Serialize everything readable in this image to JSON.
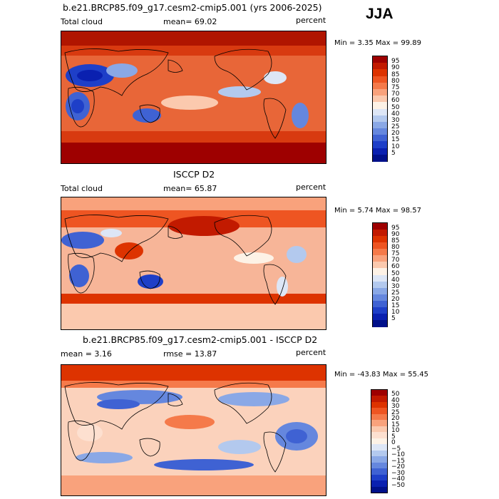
{
  "season": "JJA",
  "panels": [
    {
      "id": "model",
      "title": "b.e21.BRCP85.f09_g17.cesm2-cmip5.001 (yrs 2006-2025)",
      "left_label": "Total cloud",
      "center_label": "mean=  69.02",
      "right_label": "percent",
      "minmax": "Min =    3.35 Max =   99.89",
      "map_icon": "world-map",
      "colorbar": {
        "labels": [
          "95",
          "90",
          "85",
          "80",
          "75",
          "70",
          "60",
          "50",
          "40",
          "30",
          "25",
          "20",
          "15",
          "10",
          "5"
        ],
        "colors": [
          "#9e0000",
          "#c21a00",
          "#dd3300",
          "#ee5522",
          "#f57a4a",
          "#f9a27c",
          "#fbc9ae",
          "#fdf2e6",
          "#dde6f6",
          "#b3c9ee",
          "#8aa8e6",
          "#6587de",
          "#3f62d3",
          "#1e3fc8",
          "#0a20b0",
          "#00108a"
        ]
      }
    },
    {
      "id": "obs",
      "title": "ISCCP D2",
      "left_label": "Total cloud",
      "center_label": "mean=  65.87",
      "right_label": "percent",
      "minmax": "Min =    5.74 Max =   98.57",
      "map_icon": "world-map",
      "colorbar": {
        "labels": [
          "95",
          "90",
          "85",
          "80",
          "75",
          "70",
          "60",
          "50",
          "40",
          "30",
          "25",
          "20",
          "15",
          "10",
          "5"
        ],
        "colors": [
          "#9e0000",
          "#c21a00",
          "#dd3300",
          "#ee5522",
          "#f57a4a",
          "#f9a27c",
          "#fbc9ae",
          "#fdf2e6",
          "#dde6f6",
          "#b3c9ee",
          "#8aa8e6",
          "#6587de",
          "#3f62d3",
          "#1e3fc8",
          "#0a20b0",
          "#00108a"
        ]
      }
    },
    {
      "id": "diff",
      "title": "b.e21.BRCP85.f09_g17.cesm2-cmip5.001 - ISCCP D2",
      "left_label": "mean =    3.16",
      "center_label": "rmse =   13.87",
      "right_label": "percent",
      "minmax": "Min = -43.83 Max =   55.45",
      "map_icon": "world-map",
      "colorbar": {
        "labels": [
          "50",
          "40",
          "30",
          "25",
          "20",
          "15",
          "10",
          "5",
          "0",
          "−5",
          "−10",
          "−15",
          "−20",
          "−30",
          "−40",
          "−50"
        ],
        "colors": [
          "#9e0000",
          "#c21a00",
          "#dd3300",
          "#ee5522",
          "#f57a4a",
          "#f9a27c",
          "#fbc9ae",
          "#fde0d0",
          "#fdf2e6",
          "#dde6f6",
          "#b3c9ee",
          "#8aa8e6",
          "#6587de",
          "#3f62d3",
          "#1e3fc8",
          "#0a20b0",
          "#00108a"
        ]
      }
    }
  ]
}
